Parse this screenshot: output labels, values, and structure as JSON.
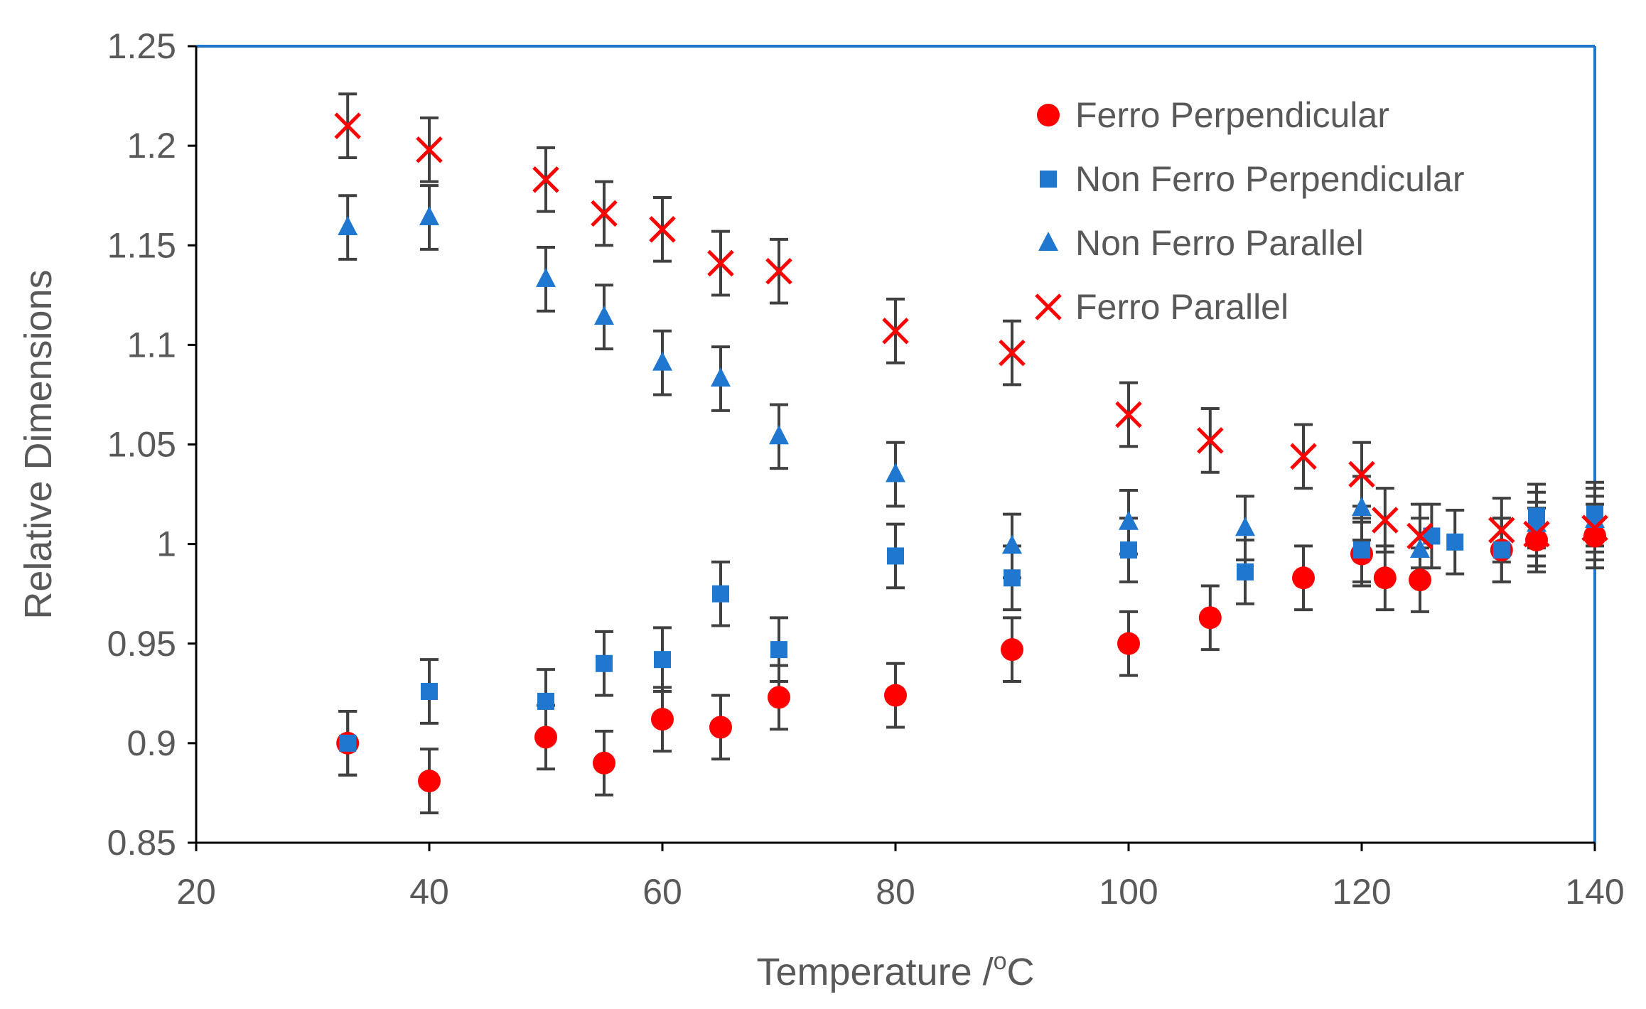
{
  "chart_data": {
    "type": "scatter",
    "title": "",
    "xlabel": "Temperature /",
    "xlabel_superscript": "o",
    "xlabel_unit": "C",
    "ylabel": "Relative Dimensions",
    "xlim": [
      20,
      140
    ],
    "ylim": [
      0.85,
      1.25
    ],
    "x_ticks": [
      20,
      40,
      60,
      80,
      100,
      120,
      140
    ],
    "y_ticks": [
      0.85,
      0.9,
      0.95,
      1.0,
      1.05,
      1.1,
      1.15,
      1.2,
      1.25
    ],
    "x_tick_labels": [
      "20",
      "40",
      "60",
      "80",
      "100",
      "120",
      "140"
    ],
    "y_tick_labels": [
      "0.85",
      "0.9",
      "0.95",
      "1",
      "1.05",
      "1.1",
      "1.15",
      "1.2",
      "1.25"
    ],
    "grid": false,
    "legend_position": "top-right",
    "error_bar": 0.016,
    "series": [
      {
        "name": "Ferro Perpendicular",
        "marker": "circle",
        "color": "#ff0000",
        "x": [
          33,
          40,
          50,
          55,
          60,
          65,
          70,
          80,
          90,
          100,
          107,
          115,
          120,
          122,
          125,
          132,
          135,
          140
        ],
        "y": [
          0.9,
          0.881,
          0.903,
          0.89,
          0.912,
          0.908,
          0.923,
          0.924,
          0.947,
          0.95,
          0.963,
          0.983,
          0.995,
          0.983,
          0.982,
          0.997,
          1.002,
          1.004
        ]
      },
      {
        "name": "Non Ferro Perpendicular",
        "marker": "square",
        "color": "#1f77d0",
        "x": [
          33,
          40,
          50,
          55,
          60,
          65,
          70,
          80,
          90,
          100,
          110,
          120,
          126,
          128,
          132,
          135,
          140
        ],
        "y": [
          0.9,
          0.926,
          0.921,
          0.94,
          0.942,
          0.975,
          0.947,
          0.994,
          0.983,
          0.997,
          0.986,
          0.997,
          1.004,
          1.001,
          0.997,
          1.014,
          1.015
        ]
      },
      {
        "name": "Non Ferro Parallel",
        "marker": "triangle",
        "color": "#1f77d0",
        "x": [
          33,
          40,
          50,
          55,
          60,
          65,
          70,
          80,
          90,
          100,
          110,
          120,
          125,
          135,
          140
        ],
        "y": [
          1.159,
          1.164,
          1.133,
          1.114,
          1.091,
          1.083,
          1.054,
          1.035,
          0.999,
          1.011,
          1.008,
          1.018,
          0.997,
          1.01,
          1.012
        ]
      },
      {
        "name": "Ferro Parallel",
        "marker": "x",
        "color": "#ff0000",
        "x": [
          33,
          40,
          50,
          55,
          60,
          65,
          70,
          80,
          90,
          100,
          107,
          115,
          120,
          122,
          125,
          132,
          135,
          140
        ],
        "y": [
          1.21,
          1.198,
          1.183,
          1.166,
          1.158,
          1.141,
          1.137,
          1.107,
          1.096,
          1.065,
          1.052,
          1.044,
          1.035,
          1.012,
          1.004,
          1.007,
          1.005,
          1.008
        ]
      }
    ]
  }
}
